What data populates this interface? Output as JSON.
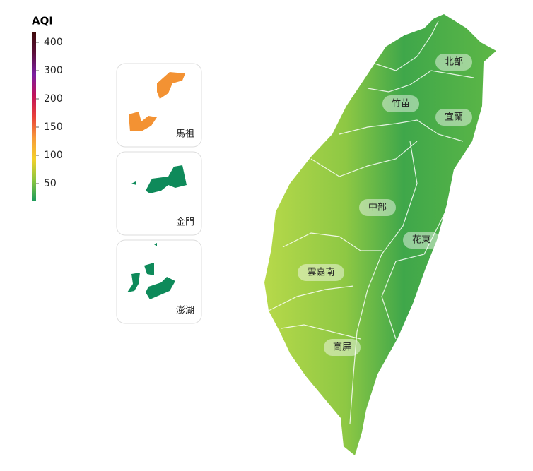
{
  "legend": {
    "title": "AQI",
    "ticks": [
      400,
      300,
      200,
      150,
      100,
      50
    ],
    "colors": [
      "#3d0a0a",
      "#5c0f3a",
      "#7a1fa0",
      "#c0125a",
      "#e8403a",
      "#f79a3a",
      "#f4d02a",
      "#8cc63f",
      "#1a9a5a"
    ]
  },
  "insets": [
    {
      "label": "馬祖"
    },
    {
      "label": "金門"
    },
    {
      "label": "澎湖"
    }
  ],
  "regions": [
    {
      "label": "北部"
    },
    {
      "label": "竹苗"
    },
    {
      "label": "宜蘭"
    },
    {
      "label": "中部"
    },
    {
      "label": "花東"
    },
    {
      "label": "雲嘉南"
    },
    {
      "label": "高屏"
    }
  ]
}
